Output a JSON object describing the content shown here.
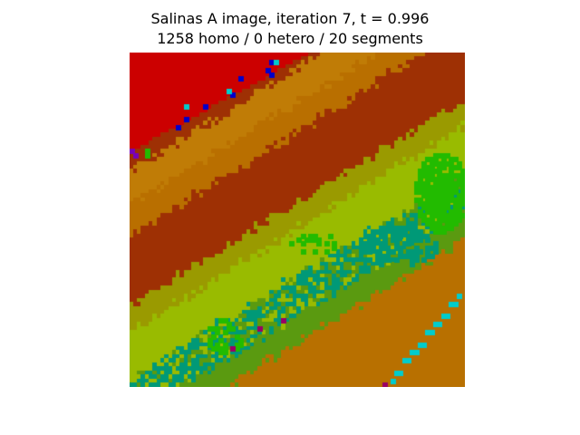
{
  "chart_data": {
    "type": "heatmap",
    "title": "Salinas A image, iteration 7, t = 0.996",
    "subtitle": "1258 homo / 0 hetero / 20 segments",
    "xlabel": "",
    "ylabel": "",
    "axes_visible": false,
    "grid": false,
    "legend": "none",
    "grid_size": [
      86,
      83
    ],
    "palette": {
      "red": "#cc0000",
      "rust": "#9e3004",
      "ochre": "#b96f00",
      "amber": "#c07c06",
      "olive": "#9a9a00",
      "lime": "#99bb00",
      "green": "#22bb00",
      "teal": "#009977",
      "mossgreen": "#5a9a10",
      "orange": "#b87000",
      "cyan": "#00cccc",
      "blue": "#0000cc",
      "purple": "#7700bb",
      "magenta": "#990066"
    },
    "segment_colors": [
      "#cc0000",
      "#9e3004",
      "#b96f00",
      "#c07c06",
      "#9a9a00",
      "#99bb00",
      "#22bb00",
      "#009977",
      "#5a9a10",
      "#b87000",
      "#00cccc",
      "#0000cc",
      "#7700bb",
      "#990066"
    ]
  }
}
